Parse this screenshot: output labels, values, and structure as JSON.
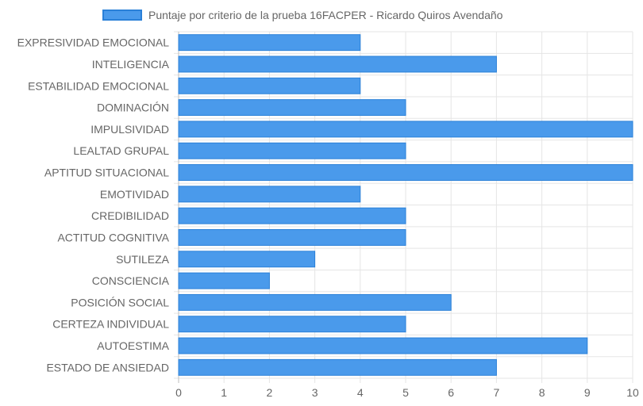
{
  "chart_data": {
    "type": "bar",
    "orientation": "horizontal",
    "legend": {
      "position": "top",
      "entries": [
        "Puntaje por criterio de la prueba 16FACPER - Ricardo Quiros Avendaño"
      ]
    },
    "categories": [
      "EXPRESIVIDAD EMOCIONAL",
      "INTELIGENCIA",
      "ESTABILIDAD EMOCIONAL",
      "DOMINACIÓN",
      "IMPULSIVIDAD",
      "LEALTAD GRUPAL",
      "APTITUD SITUACIONAL",
      "EMOTIVIDAD",
      "CREDIBILIDAD",
      "ACTITUD COGNITIVA",
      "SUTILEZA",
      "CONSCIENCIA",
      "POSICIÓN SOCIAL",
      "CERTEZA INDIVIDUAL",
      "AUTOESTIMA",
      "ESTADO DE ANSIEDAD"
    ],
    "series": [
      {
        "name": "Puntaje por criterio de la prueba 16FACPER - Ricardo Quiros Avendaño",
        "values": [
          4,
          7,
          4,
          5,
          10,
          5,
          10,
          4,
          5,
          5,
          3,
          2,
          6,
          5,
          9,
          7
        ]
      }
    ],
    "xlim": [
      0,
      10
    ],
    "x_ticks": [
      "0",
      "1",
      "2",
      "3",
      "4",
      "5",
      "6",
      "7",
      "8",
      "9",
      "10"
    ],
    "grid": true,
    "colors": {
      "bar_fill": "#4a9aeb",
      "bar_border": "#2a80d8",
      "grid": "#e5e5e5",
      "text": "#666666"
    }
  }
}
